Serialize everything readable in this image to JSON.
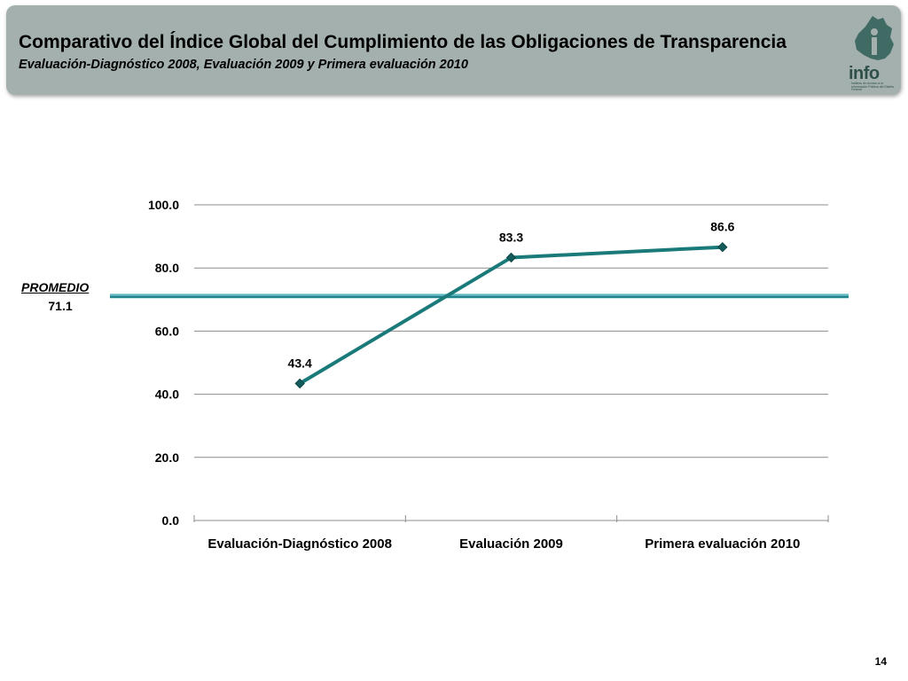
{
  "header": {
    "title": "Comparativo del Índice Global del Cumplimiento de las Obligaciones de Transparencia",
    "subtitle": "Evaluación-Diagnóstico 2008, Evaluación 2009 y Primera evaluación 2010",
    "logo_text": "info",
    "logo_small_text": "Instituto de Acceso a la Información Pública del Distrito Federal"
  },
  "average": {
    "label": "PROMEDIO",
    "value": "71.1"
  },
  "page_number": "14",
  "colors": {
    "line": "#1a7a7a",
    "average_line": "#1e7f86",
    "average_line_light": "#5fb8c2",
    "header_bg": "#a3b0ad",
    "grid": "#8c8c8c"
  },
  "chart_data": {
    "type": "line",
    "categories": [
      "Evaluación-Diagnóstico 2008",
      "Evaluación 2009",
      "Primera evaluación 2010"
    ],
    "series": [
      {
        "values": [
          43.4,
          83.3,
          86.6
        ]
      }
    ],
    "data_labels": [
      "43.4",
      "83.3",
      "86.6"
    ],
    "ylim": [
      0,
      100
    ],
    "yticks": [
      0,
      20,
      40,
      60,
      80,
      100
    ],
    "ytick_labels": [
      "0.0",
      "20.0",
      "40.0",
      "60.0",
      "80.0",
      "100.0"
    ],
    "reference_line": {
      "value": 71.1
    },
    "grid": true,
    "legend": "none"
  }
}
